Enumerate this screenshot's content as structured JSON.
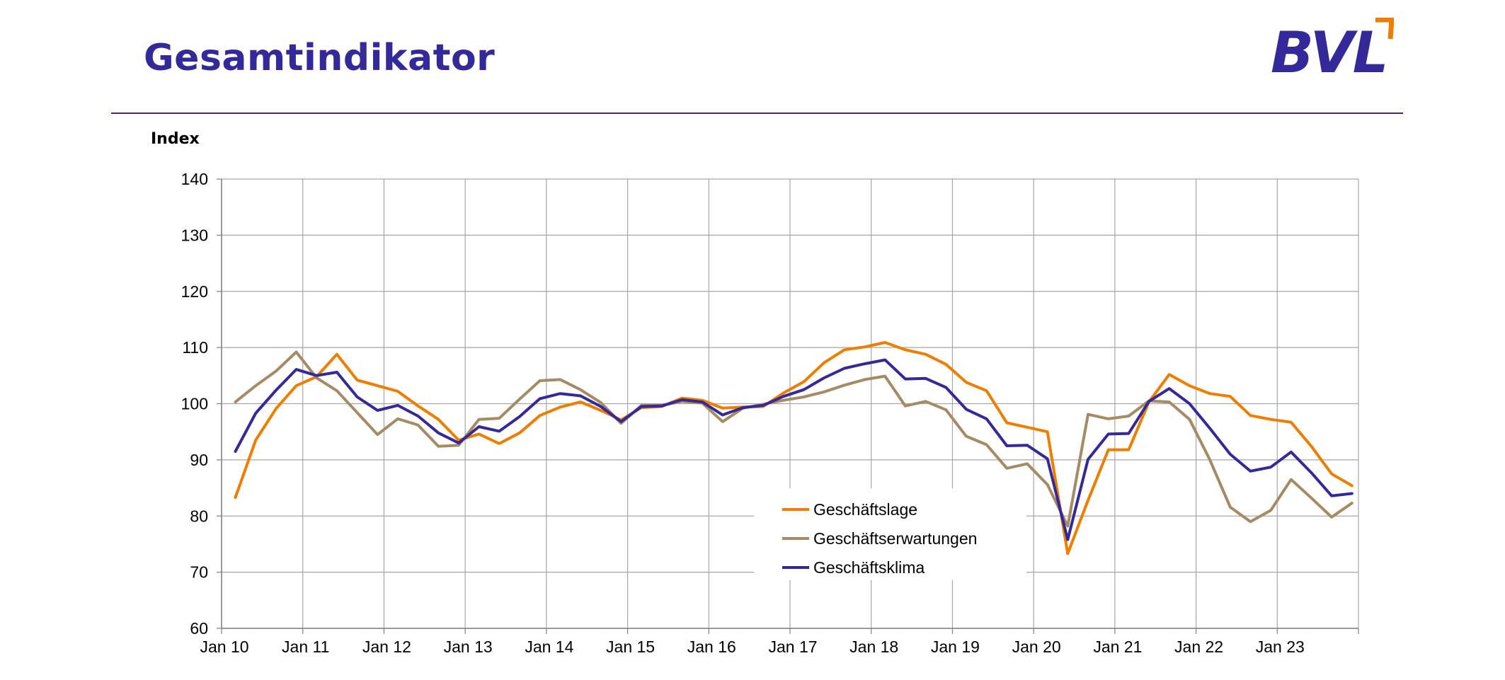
{
  "header": {
    "title": "Gesamtindikator",
    "logo_text": "BVL"
  },
  "colors": {
    "title": "#33299a",
    "grid": "#a6a6a6",
    "axis": "#808080"
  },
  "chart_data": {
    "type": "line",
    "title": "",
    "ylabel": "Index",
    "xlabel": "",
    "ylim": [
      60,
      140
    ],
    "yticks": [
      60,
      70,
      80,
      90,
      100,
      110,
      120,
      130,
      140
    ],
    "x_range": [
      2010.0,
      2024.0
    ],
    "xtick_labels": [
      "Jan 10",
      "Jan 11",
      "Jan 12",
      "Jan 13",
      "Jan 14",
      "Jan 15",
      "Jan 16",
      "Jan 17",
      "Jan 18",
      "Jan 19",
      "Jan 20",
      "Jan 21",
      "Jan 22",
      "Jan 23"
    ],
    "grid": true,
    "legend_position": "bottom-center",
    "x": [
      2010.17,
      2010.42,
      2010.67,
      2010.92,
      2011.17,
      2011.42,
      2011.67,
      2011.92,
      2012.17,
      2012.42,
      2012.67,
      2012.92,
      2013.17,
      2013.42,
      2013.67,
      2013.92,
      2014.17,
      2014.42,
      2014.67,
      2014.92,
      2015.17,
      2015.42,
      2015.67,
      2015.92,
      2016.17,
      2016.42,
      2016.67,
      2016.92,
      2017.17,
      2017.42,
      2017.67,
      2017.92,
      2018.17,
      2018.42,
      2018.67,
      2018.92,
      2019.17,
      2019.42,
      2019.67,
      2019.92,
      2020.17,
      2020.42,
      2020.67,
      2020.92,
      2021.17,
      2021.42,
      2021.67,
      2021.92,
      2022.17,
      2022.42,
      2022.67,
      2022.92,
      2023.17,
      2023.42,
      2023.67,
      2023.92
    ],
    "series": [
      {
        "name": "Geschäftslage",
        "color": "#f07d00",
        "values": [
          83.3,
          93.5,
          99.1,
          103.2,
          104.8,
          108.8,
          104.2,
          103.2,
          102.2,
          99.6,
          97.2,
          93.5,
          94.6,
          92.9,
          94.8,
          97.9,
          99.4,
          100.3,
          98.8,
          97.1,
          99.3,
          99.5,
          101.0,
          100.6,
          99.2,
          99.4,
          99.5,
          101.9,
          103.9,
          107.3,
          109.6,
          110.1,
          110.9,
          109.6,
          108.8,
          107.0,
          103.8,
          102.3,
          96.6,
          95.8,
          95.0,
          73.3,
          82.8,
          91.8,
          91.8,
          100.3,
          105.2,
          103.2,
          101.8,
          101.3,
          97.9,
          97.2,
          96.7,
          92.4,
          87.5,
          85.4
        ]
      },
      {
        "name": "Geschäftserwartungen",
        "color": "#a68a64",
        "values": [
          100.3,
          103.2,
          105.8,
          109.2,
          104.6,
          102.3,
          98.4,
          94.5,
          97.3,
          96.2,
          92.4,
          92.6,
          97.2,
          97.4,
          100.8,
          104.1,
          104.3,
          102.5,
          100.2,
          96.5,
          99.7,
          99.7,
          100.4,
          100.1,
          96.8,
          99.2,
          99.9,
          100.6,
          101.2,
          102.1,
          103.3,
          104.3,
          104.9,
          99.6,
          100.4,
          98.9,
          94.2,
          92.7,
          88.5,
          89.3,
          85.6,
          78.2,
          98.1,
          97.3,
          97.8,
          100.5,
          100.3,
          97.2,
          90.0,
          81.6,
          79.0,
          81.0,
          86.5,
          83.2,
          79.8,
          82.3
        ]
      },
      {
        "name": "Geschäftsklima",
        "color": "#33299a",
        "values": [
          91.5,
          98.3,
          102.4,
          106.1,
          105.0,
          105.6,
          101.2,
          98.8,
          99.7,
          97.8,
          94.8,
          93.0,
          95.9,
          95.1,
          97.7,
          100.9,
          101.8,
          101.4,
          99.5,
          96.8,
          99.5,
          99.6,
          100.7,
          100.3,
          98.0,
          99.3,
          99.7,
          101.3,
          102.5,
          104.6,
          106.3,
          107.1,
          107.8,
          104.4,
          104.5,
          102.9,
          99.0,
          97.3,
          92.5,
          92.6,
          90.2,
          75.8,
          90.1,
          94.6,
          94.7,
          100.4,
          102.7,
          100.0,
          95.6,
          91.0,
          88.0,
          88.7,
          91.4,
          87.7,
          83.6,
          84.0
        ]
      }
    ]
  }
}
